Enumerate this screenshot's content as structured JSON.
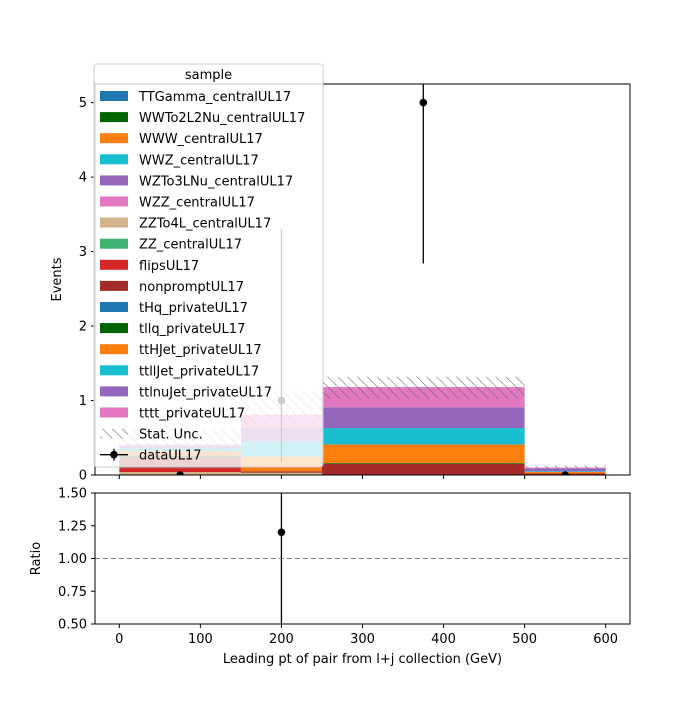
{
  "chart_data": {
    "type": "bar",
    "subtype": "stacked-step-histogram-with-ratio",
    "x_bin_edges": [
      0,
      150,
      250,
      500,
      600
    ],
    "xlim": [
      -30,
      630
    ],
    "xticks": [
      0,
      100,
      200,
      300,
      400,
      500,
      600
    ],
    "xlabel": "Leading pt of pair from l+j collection (GeV)",
    "main": {
      "ylabel": "Events",
      "ylim": [
        0,
        5.25
      ],
      "yticks": [
        0,
        1,
        2,
        3,
        4,
        5
      ]
    },
    "ratio": {
      "ylabel": "Ratio",
      "ylim": [
        0.5,
        1.5
      ],
      "yticks": [
        "0.50",
        "0.75",
        "1.00",
        "1.25",
        "1.50"
      ],
      "reference_line": 1.0,
      "points": [
        {
          "x": 200,
          "y": 1.2,
          "err_low": 1.0,
          "err_high": 1.0
        }
      ]
    },
    "legend": {
      "title": "sample",
      "position": "upper-left",
      "stat_unc_label": "Stat. Unc.",
      "data_label": "dataUL17"
    },
    "series": [
      {
        "name": "TTGamma_centralUL17",
        "color": "#1f77b4",
        "values": [
          0,
          0,
          0,
          0
        ]
      },
      {
        "name": "WWTo2L2Nu_centralUL17",
        "color": "#006400",
        "values": [
          0,
          0,
          0,
          0
        ]
      },
      {
        "name": "WWW_centralUL17",
        "color": "#ff7f0e",
        "values": [
          0,
          0,
          0,
          0
        ]
      },
      {
        "name": "WWZ_centralUL17",
        "color": "#17becf",
        "values": [
          0,
          0,
          0,
          0
        ]
      },
      {
        "name": "WZTo3LNu_centralUL17",
        "color": "#9467bd",
        "values": [
          0,
          0,
          0,
          0
        ]
      },
      {
        "name": "WZZ_centralUL17",
        "color": "#e377c2",
        "values": [
          0,
          0,
          0,
          0
        ]
      },
      {
        "name": "ZZTo4L_centralUL17",
        "color": "#d2b48c",
        "values": [
          0.04,
          0.03,
          0,
          0
        ]
      },
      {
        "name": "ZZ_centralUL17",
        "color": "#3cb371",
        "values": [
          0,
          0,
          0,
          0
        ]
      },
      {
        "name": "flipsUL17",
        "color": "#d62728",
        "values": [
          0.05,
          0,
          0,
          0
        ]
      },
      {
        "name": "nonpromptUL17",
        "color": "#a52a2a",
        "values": [
          0.15,
          0.02,
          0.15,
          0.02
        ]
      },
      {
        "name": "tHq_privateUL17",
        "color": "#1f77b4",
        "values": [
          0,
          0,
          0,
          0
        ]
      },
      {
        "name": "tllq_privateUL17",
        "color": "#006400",
        "values": [
          0.02,
          0,
          0.01,
          0
        ]
      },
      {
        "name": "ttHJet_privateUL17",
        "color": "#ff7f0e",
        "values": [
          0.06,
          0.2,
          0.25,
          0.02
        ]
      },
      {
        "name": "ttllJet_privateUL17",
        "color": "#17becf",
        "values": [
          0.04,
          0.2,
          0.22,
          0.01
        ]
      },
      {
        "name": "ttlnuJet_privateUL17",
        "color": "#9467bd",
        "values": [
          0.03,
          0.18,
          0.28,
          0.04
        ]
      },
      {
        "name": "tttt_privateUL17",
        "color": "#e377c2",
        "values": [
          0.02,
          0.18,
          0.27,
          0.01
        ]
      }
    ],
    "stat_unc": [
      {
        "low": 0.2,
        "high": 0.62
      },
      {
        "low": 0.6,
        "high": 1.12
      },
      {
        "low": 1.02,
        "high": 1.32
      },
      {
        "low": 0.07,
        "high": 0.13
      }
    ],
    "data_points": [
      {
        "x": 75,
        "y": 0,
        "err_low": 0,
        "err_high": 0
      },
      {
        "x": 200,
        "y": 1,
        "err_low": 0.83,
        "err_high": 2.3
      },
      {
        "x": 375,
        "y": 5,
        "err_low": 2.16,
        "err_high": 3.38
      },
      {
        "x": 550,
        "y": 0,
        "err_low": 0,
        "err_high": 0
      }
    ]
  }
}
